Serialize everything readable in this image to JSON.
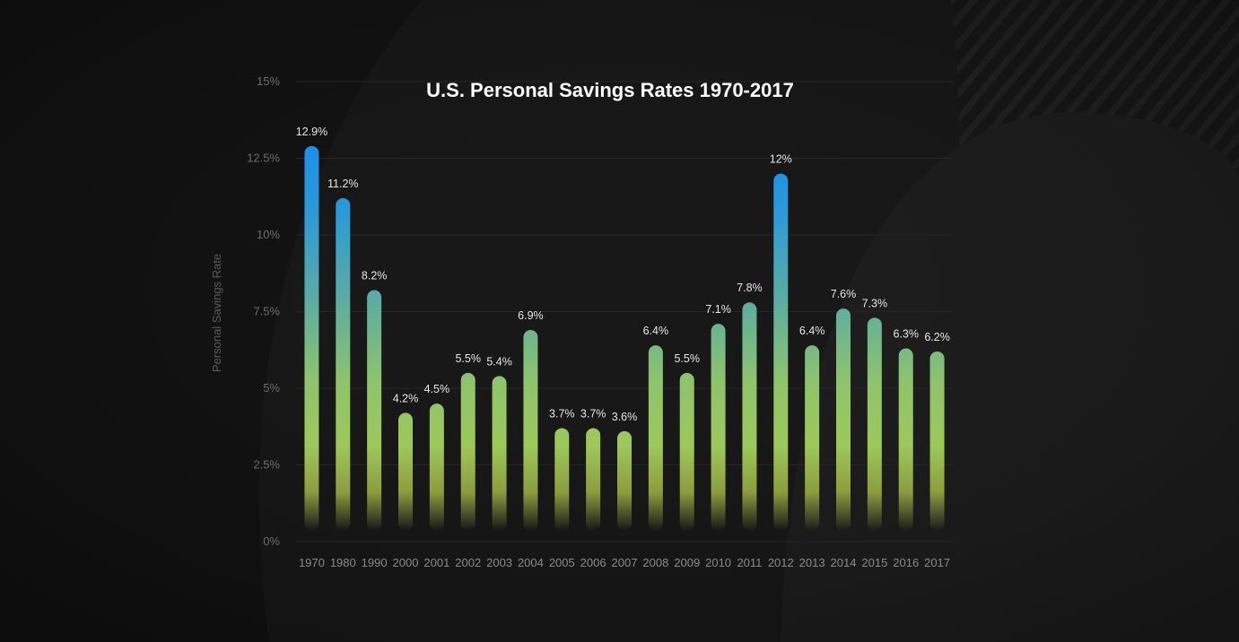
{
  "chart_data": {
    "type": "bar",
    "title": "U.S. Personal Savings Rates 1970-2017",
    "xlabel": "",
    "ylabel": "Personal Savings Rate",
    "ylim": [
      0,
      15
    ],
    "yticks": [
      "0%",
      "2.5%",
      "5%",
      "7.5%",
      "10%",
      "12.5%",
      "15%"
    ],
    "ytick_values": [
      0,
      2.5,
      5,
      7.5,
      10,
      12.5,
      15
    ],
    "grid": true,
    "categories": [
      "1970",
      "1980",
      "1990",
      "2000",
      "2001",
      "2002",
      "2003",
      "2004",
      "2005",
      "2006",
      "2007",
      "2008",
      "2009",
      "2010",
      "2011",
      "2012",
      "2013",
      "2014",
      "2015",
      "2016",
      "2017"
    ],
    "values": [
      12.9,
      11.2,
      8.2,
      4.2,
      4.5,
      5.5,
      5.4,
      6.9,
      3.7,
      3.7,
      3.6,
      6.4,
      5.5,
      7.1,
      7.8,
      12,
      6.4,
      7.6,
      7.3,
      6.3,
      6.2
    ],
    "data_labels": [
      "12.9%",
      "11.2%",
      "8.2%",
      "4.2%",
      "4.5%",
      "5.5%",
      "5.4%",
      "6.9%",
      "3.7%",
      "3.7%",
      "3.6%",
      "6.4%",
      "5.5%",
      "7.1%",
      "7.8%",
      "12%",
      "6.4%",
      "7.6%",
      "7.3%",
      "6.3%",
      "6.2%"
    ]
  },
  "colors": {
    "background": "#121212",
    "bar_top": "#1e8fe6",
    "bar_mid": "#9cc85a",
    "bar_bottom": "#8a9a3a",
    "gridline": "#2a2a2a",
    "title": "#ffffff"
  }
}
